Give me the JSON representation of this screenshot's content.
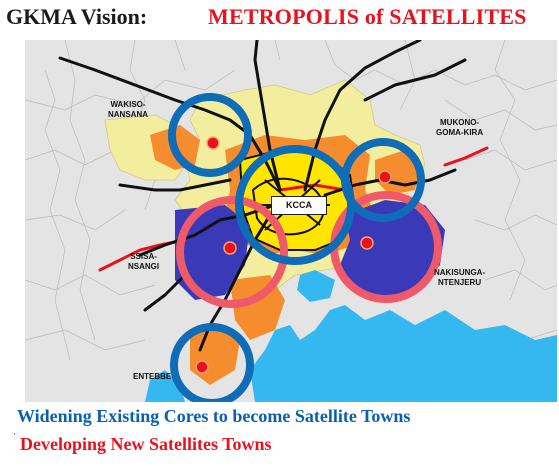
{
  "header": {
    "prefix": "GKMA Vision:",
    "title": "METROPOLIS of SATELLITES"
  },
  "map": {
    "labels": {
      "wakiso": "WAKISO-\nNANSANA",
      "mukono": "MUKONO-\nGOMA-KIRA",
      "kcca": "KCCA",
      "ssisa": "SSISA-\nNSANGI",
      "nakisunga": "NAKISUNGA-\nNTENJERU",
      "entebbe": "ENTEBBE"
    },
    "colors": {
      "existing_core_ring": "#0f6cb6",
      "new_satellite_ring": "#ef5a6a",
      "urban_yellow": "#f3ee9e",
      "urban_orange": "#f58c2d",
      "new_area_blue": "#3a3ab8",
      "water": "#35b8f0",
      "roads": "#111111",
      "rail": "#e8121c"
    }
  },
  "legend": {
    "existing": "Widening Existing Cores to become Satellite Towns",
    "new": "Developing New Satellites Towns",
    "bullet": "'"
  }
}
